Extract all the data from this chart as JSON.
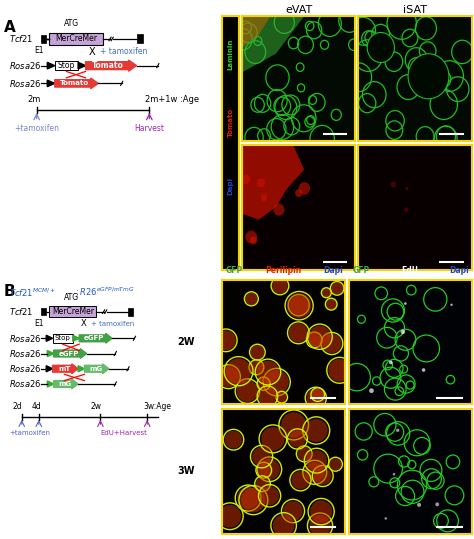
{
  "fig_width": 4.74,
  "fig_height": 5.39,
  "dpi": 100,
  "bg_color": "#ffffff",
  "panel_A_label": "A",
  "panel_B_label": "B",
  "eVAT_label": "eVAT",
  "iSAT_label": "iSAT",
  "MerCreMer_color": "#c5a3d6",
  "MerCreMer_label": "MerCreMer",
  "Tomato_color": "#e53935",
  "Tomato_label": "Tomato",
  "tamoxifen_color": "#3f6fbf",
  "timeline_A_colors": [
    "#7986cb",
    "#9c27b0"
  ],
  "eGFP_color": "#43a047",
  "mG_color": "#66bb6a",
  "week2_label": "2W",
  "week3_label": "3W",
  "yellow_border_color": "#f5d306",
  "sidebar_color": "#000000",
  "laminin_color": "#33cc33",
  "tomato_fl_color": "#dd2200",
  "dapi_color": "#2244cc"
}
